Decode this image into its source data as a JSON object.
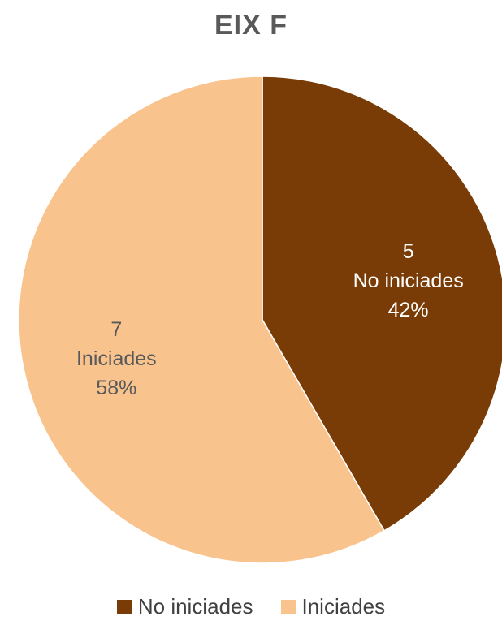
{
  "chart_data": {
    "type": "pie",
    "title": "EIX F",
    "slices": [
      {
        "name": "No iniciades",
        "value": 5,
        "percent_label": "42%",
        "color": "#7a3c06"
      },
      {
        "name": "Iniciades",
        "value": 7,
        "percent_label": "58%",
        "color": "#f9c38e"
      }
    ],
    "start_angle_deg": 0,
    "direction": "clockwise",
    "legend_position": "bottom",
    "data_label_colors": {
      "No iniciades": "#ffffff",
      "Iniciades": "#595959"
    }
  }
}
